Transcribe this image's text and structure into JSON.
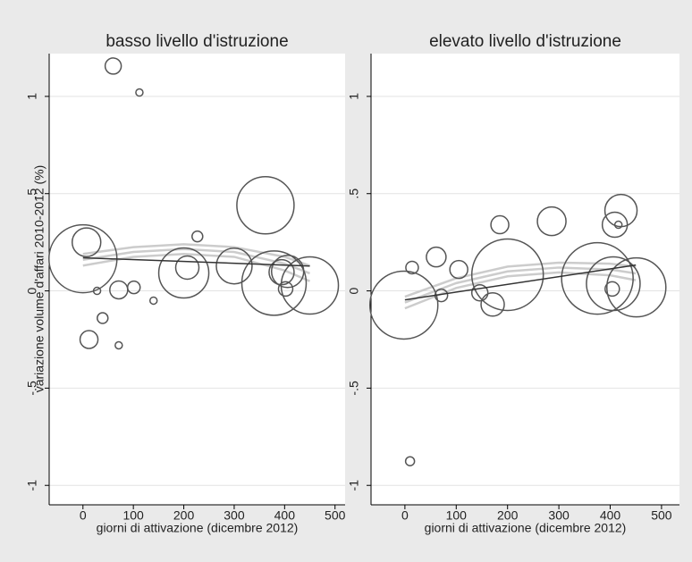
{
  "chart_data": [
    {
      "type": "scatter",
      "title": "basso livello d'istruzione",
      "y_label": "variazione volume d'affari 2010-2012 (%)",
      "x_label": "giorni di attivazione (dicembre 2012)",
      "xlim": [
        -67,
        520
      ],
      "ylim": [
        -1.1,
        1.22
      ],
      "xticks": [
        0,
        100,
        200,
        300,
        400,
        500
      ],
      "yticks": [
        -1,
        {
          "value": -0.5,
          "label": "-.5"
        },
        0,
        {
          "value": 0.5,
          "label": ".5"
        },
        1
      ],
      "grid": true,
      "points": {
        "color": "#555555",
        "x": [
          60,
          112,
          0,
          7,
          12,
          28,
          71,
          39,
          101,
          71,
          140,
          227,
          207,
          200,
          300,
          362,
          379,
          394,
          406,
          402,
          450
        ],
        "values": [
          1.156,
          1.02,
          0.165,
          0.25,
          -0.25,
          0,
          0.005,
          -0.14,
          0.018,
          -0.28,
          -0.05,
          0.28,
          0.12,
          0.092,
          0.128,
          0.44,
          0.04,
          0.096,
          0.1,
          0.01,
          0.028
        ],
        "sizes": [
          81,
          16,
          1444,
          256,
          100,
          16,
          100,
          36,
          49,
          16,
          16,
          36,
          169,
          784,
          400,
          1024,
          1296,
          196,
          324,
          64,
          1024
        ]
      },
      "fit": {
        "color": "#333333",
        "x": [
          0,
          450
        ],
        "values": [
          0.17,
          0.128
        ]
      },
      "quad": {
        "color": "#cccccc",
        "x": [
          0,
          100,
          200,
          300,
          400,
          450
        ],
        "values": [
          0.16,
          0.2,
          0.215,
          0.2,
          0.14,
          0.09
        ],
        "upper": [
          0.19,
          0.225,
          0.24,
          0.225,
          0.175,
          0.13
        ],
        "lower": [
          0.13,
          0.175,
          0.19,
          0.175,
          0.105,
          0.05
        ]
      }
    },
    {
      "type": "scatter",
      "title": "elevato livello d'istruzione",
      "x_label": "giorni di attivazione (dicembre 2012)",
      "xlim": [
        -66,
        535
      ],
      "ylim": [
        -1.1,
        1.22
      ],
      "xticks": [
        0,
        100,
        200,
        300,
        400,
        500
      ],
      "yticks": [
        -1,
        {
          "value": -0.5,
          "label": "-.5"
        },
        0,
        {
          "value": 0.5,
          "label": ".5"
        },
        1
      ],
      "grid": true,
      "points": {
        "color": "#555555",
        "x": [
          10,
          -2,
          14,
          61,
          71,
          105,
          146,
          171,
          185,
          286,
          200,
          375,
          406,
          421,
          409,
          416,
          451,
          404
        ],
        "values": [
          -0.876,
          -0.073,
          0.12,
          0.174,
          -0.023,
          0.11,
          -0.01,
          -0.07,
          0.34,
          0.358,
          0.083,
          0.064,
          0.037,
          0.413,
          0.34,
          0.34,
          0.018,
          0.01
        ],
        "sizes": [
          25,
          1444,
          49,
          121,
          49,
          100,
          81,
          169,
          100,
          256,
          1600,
          1600,
          900,
          324,
          196,
          16,
          1089,
          64
        ]
      },
      "fit": {
        "color": "#333333",
        "x": [
          0,
          450
        ],
        "values": [
          -0.046,
          0.133
        ]
      },
      "quad": {
        "color": "#cccccc",
        "x": [
          0,
          100,
          200,
          300,
          400,
          450
        ],
        "values": [
          -0.06,
          0.04,
          0.1,
          0.12,
          0.11,
          0.09
        ],
        "upper": [
          -0.03,
          0.065,
          0.125,
          0.145,
          0.14,
          0.125
        ],
        "lower": [
          -0.09,
          0.015,
          0.075,
          0.095,
          0.08,
          0.055
        ]
      }
    }
  ]
}
